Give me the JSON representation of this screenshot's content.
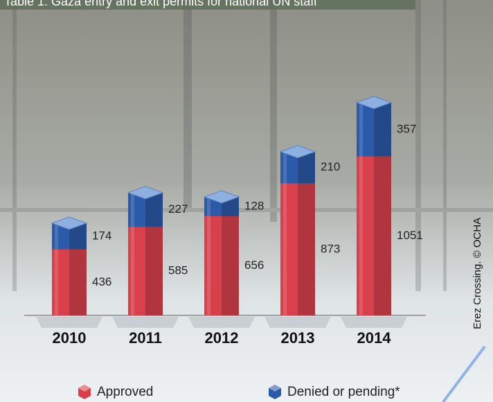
{
  "chart_data": {
    "type": "bar",
    "stacked": true,
    "title": "Table 1: Gaza entry and exit permits for national UN staff",
    "categories": [
      "2010",
      "2011",
      "2012",
      "2013",
      "2014"
    ],
    "series": [
      {
        "name": "Approved",
        "color": "#d8414c",
        "values": [
          436,
          585,
          656,
          873,
          1051
        ]
      },
      {
        "name": "Denied or pending*",
        "color": "#2b5aa8",
        "values": [
          174,
          227,
          128,
          210,
          357
        ]
      }
    ],
    "annotations": [
      "Erez Crossing. © OCHA"
    ]
  }
}
